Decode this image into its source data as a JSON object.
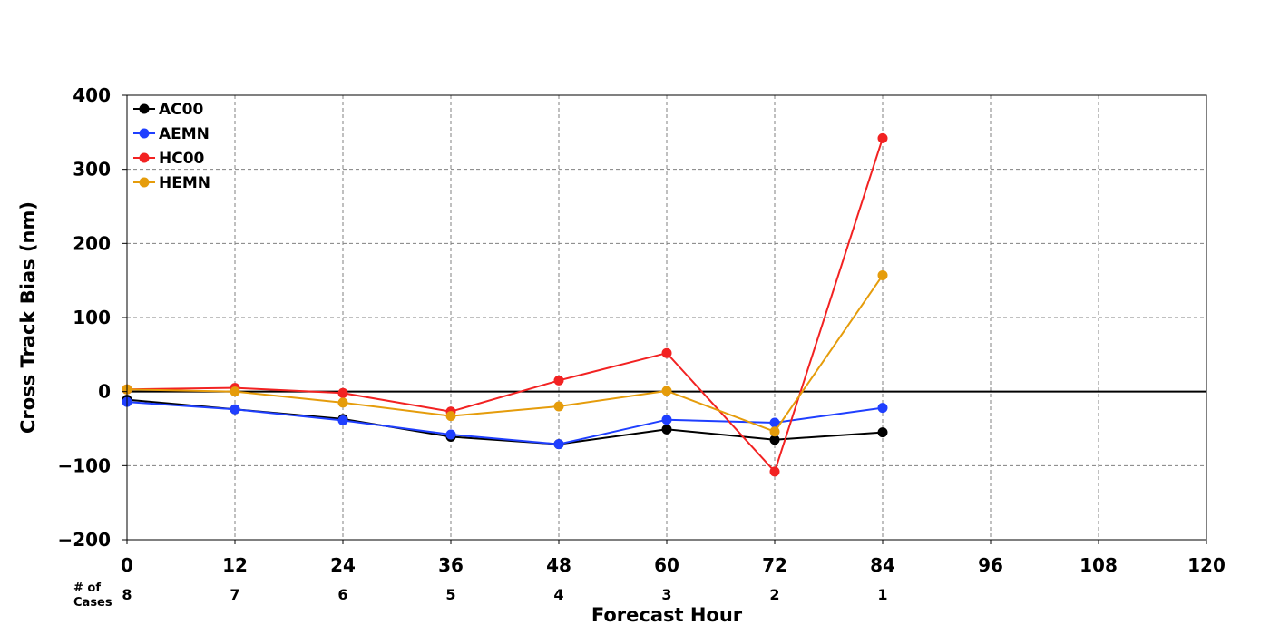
{
  "chart_data": {
    "type": "line",
    "title": "",
    "xlabel": "Forecast Hour",
    "ylabel": "Cross Track Bias (nm)",
    "xlim": [
      0,
      120
    ],
    "ylim": [
      -200,
      400
    ],
    "xticks": [
      0,
      12,
      24,
      36,
      48,
      60,
      72,
      84,
      96,
      108,
      120
    ],
    "yticks": [
      -200,
      -100,
      0,
      100,
      200,
      300,
      400
    ],
    "ytick_labels": [
      "−200",
      "−100",
      "0",
      "100",
      "200",
      "300",
      "400"
    ],
    "grid": true,
    "zero_line": true,
    "legend_position": "top-left",
    "series": [
      {
        "name": "AC00",
        "color": "#000000",
        "x": [
          0,
          12,
          24,
          36,
          48,
          60,
          72,
          84
        ],
        "values": [
          -11,
          -24,
          -37,
          -61,
          -71,
          -51,
          -65,
          -55
        ]
      },
      {
        "name": "AEMN",
        "color": "#1f3fff",
        "x": [
          0,
          12,
          24,
          36,
          48,
          60,
          72,
          84
        ],
        "values": [
          -14,
          -24,
          -39,
          -58,
          -71,
          -38,
          -42,
          -22
        ]
      },
      {
        "name": "HC00",
        "color": "#f22222",
        "x": [
          0,
          12,
          24,
          36,
          48,
          60,
          72,
          84
        ],
        "values": [
          3,
          5,
          -2,
          -27,
          15,
          52,
          -108,
          342
        ]
      },
      {
        "name": "HEMN",
        "color": "#e59c0b",
        "x": [
          0,
          12,
          24,
          36,
          48,
          60,
          72,
          84
        ],
        "values": [
          3,
          0,
          -15,
          -33,
          -20,
          1,
          -54,
          157
        ]
      }
    ],
    "cases_label_line1": "# of",
    "cases_label_line2": "Cases",
    "cases": [
      {
        "x": 0,
        "count": "8"
      },
      {
        "x": 12,
        "count": "7"
      },
      {
        "x": 24,
        "count": "6"
      },
      {
        "x": 36,
        "count": "5"
      },
      {
        "x": 48,
        "count": "4"
      },
      {
        "x": 60,
        "count": "3"
      },
      {
        "x": 72,
        "count": "2"
      },
      {
        "x": 84,
        "count": "1"
      }
    ]
  }
}
